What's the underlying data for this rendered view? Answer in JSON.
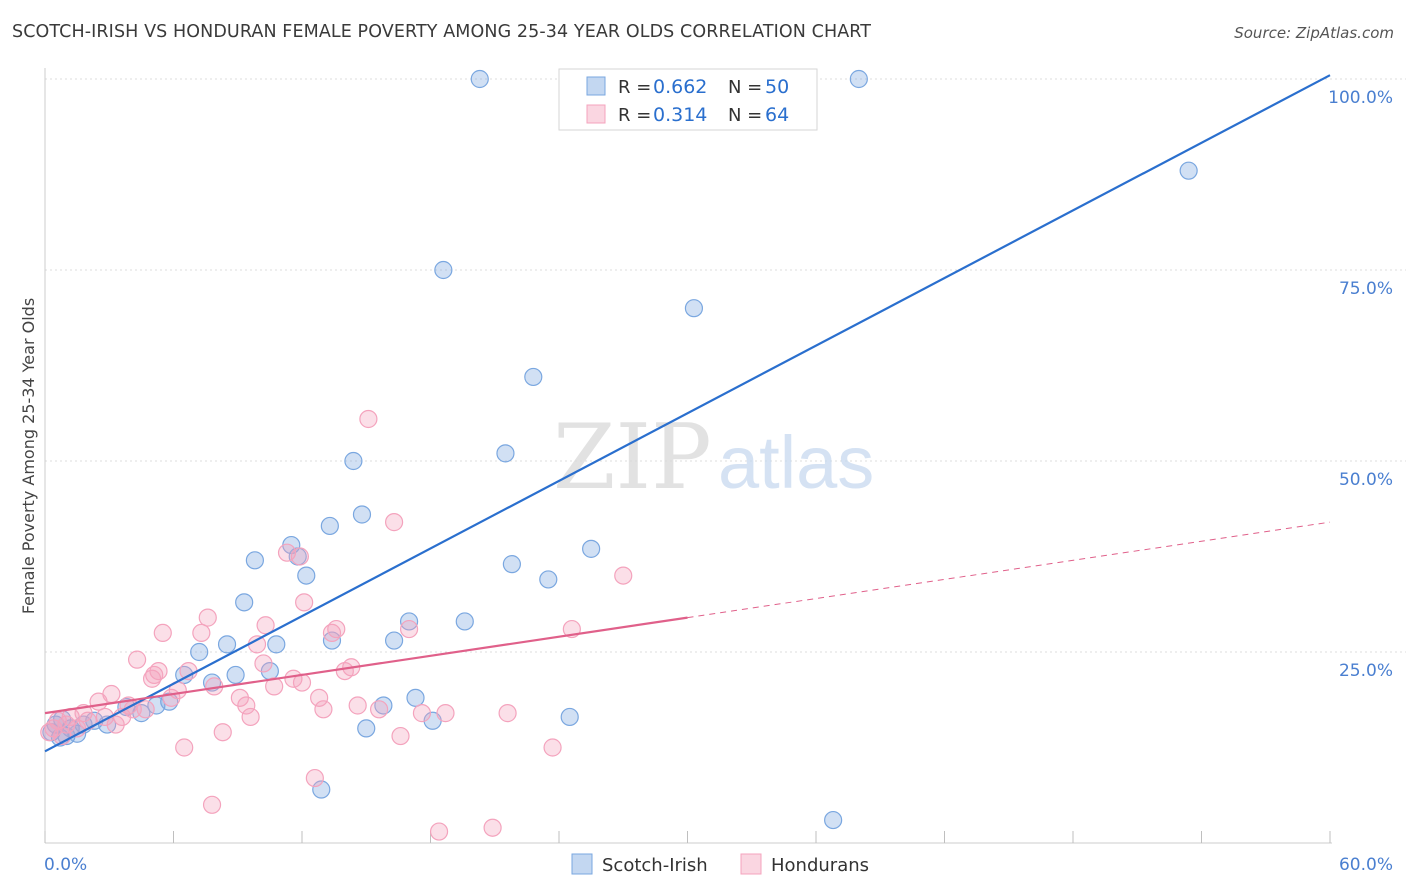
{
  "chart_data": {
    "type": "scatter",
    "title": "SCOTCH-IRISH VS HONDURAN FEMALE POVERTY AMONG 25-34 YEAR OLDS CORRELATION CHART",
    "source": "Source: ZipAtlas.com",
    "ylabel": "Female Poverty Among 25-34 Year Olds",
    "xlabel": "",
    "xlim": [
      0,
      60
    ],
    "ylim": [
      0,
      102
    ],
    "x_tick_labels": [
      {
        "value": 0,
        "label": "0.0%"
      },
      {
        "value": 60,
        "label": "60.0%"
      }
    ],
    "y_tick_labels": [
      {
        "value": 25,
        "label": "25.0%"
      },
      {
        "value": 50,
        "label": "50.0%"
      },
      {
        "value": 75,
        "label": "75.0%"
      },
      {
        "value": 100,
        "label": "100.0%"
      }
    ],
    "watermark": {
      "zip": "ZIP",
      "atlas": "atlas"
    },
    "legend_position": "top-center",
    "series": [
      {
        "name": "Scotch-Irish",
        "color": "#7aa7e0",
        "line_color": "#2a6fce",
        "r_label": "R =",
        "r_value": "0.662",
        "n_label": "N =",
        "n_value": "50",
        "trend": {
          "x0": 0,
          "y0": 12.0,
          "x1": 60,
          "y1": 100.5
        },
        "points": [
          [
            0.3,
            14.5
          ],
          [
            0.5,
            15.5
          ],
          [
            0.7,
            13.8
          ],
          [
            0.8,
            16.2
          ],
          [
            1.0,
            14.0
          ],
          [
            1.2,
            15.0
          ],
          [
            1.5,
            14.3
          ],
          [
            1.8,
            15.5
          ],
          [
            2.3,
            16.0
          ],
          [
            2.9,
            15.5
          ],
          [
            3.8,
            17.8
          ],
          [
            4.5,
            17.0
          ],
          [
            5.2,
            18.0
          ],
          [
            5.8,
            18.5
          ],
          [
            6.5,
            22.0
          ],
          [
            7.2,
            25.0
          ],
          [
            7.8,
            21.0
          ],
          [
            8.5,
            26.0
          ],
          [
            8.9,
            22.0
          ],
          [
            9.3,
            31.5
          ],
          [
            9.8,
            37.0
          ],
          [
            10.5,
            22.5
          ],
          [
            10.8,
            26.0
          ],
          [
            11.5,
            39.0
          ],
          [
            11.8,
            37.5
          ],
          [
            12.2,
            35.0
          ],
          [
            13.4,
            26.5
          ],
          [
            13.3,
            41.5
          ],
          [
            14.4,
            50.0
          ],
          [
            14.8,
            43.0
          ],
          [
            15.0,
            15.0
          ],
          [
            15.8,
            18.0
          ],
          [
            16.3,
            26.5
          ],
          [
            17.0,
            29.0
          ],
          [
            17.3,
            19.0
          ],
          [
            18.1,
            16.0
          ],
          [
            18.6,
            75.0
          ],
          [
            19.6,
            29.0
          ],
          [
            20.3,
            100.0
          ],
          [
            21.5,
            51.0
          ],
          [
            21.8,
            36.5
          ],
          [
            22.8,
            61.0
          ],
          [
            23.5,
            34.5
          ],
          [
            24.5,
            16.5
          ],
          [
            25.5,
            38.5
          ],
          [
            30.3,
            70.0
          ],
          [
            36.8,
            3.0
          ],
          [
            38.0,
            100.0
          ],
          [
            53.4,
            88.0
          ],
          [
            12.9,
            7.0
          ]
        ]
      },
      {
        "name": "Hondurans",
        "color": "#f4a3bd",
        "line_color": "#e0608a",
        "r_label": "R =",
        "r_value": "0.314",
        "n_label": "N =",
        "n_value": "64",
        "trend": {
          "x0": 0,
          "y0": 17.0,
          "x1": 30,
          "y1": 29.5
        },
        "trend_dash": {
          "x0": 30,
          "y0": 29.5,
          "x1": 60,
          "y1": 42.0
        },
        "points": [
          [
            0.2,
            14.5
          ],
          [
            0.4,
            15.0
          ],
          [
            0.6,
            16.0
          ],
          [
            0.8,
            14.0
          ],
          [
            1.0,
            15.5
          ],
          [
            1.2,
            16.5
          ],
          [
            1.5,
            15.0
          ],
          [
            1.8,
            17.0
          ],
          [
            2.0,
            16.0
          ],
          [
            2.5,
            18.5
          ],
          [
            2.8,
            16.5
          ],
          [
            3.1,
            19.5
          ],
          [
            3.3,
            15.5
          ],
          [
            3.6,
            16.5
          ],
          [
            3.9,
            18.0
          ],
          [
            4.1,
            17.5
          ],
          [
            4.3,
            24.0
          ],
          [
            4.7,
            17.5
          ],
          [
            5.1,
            22.0
          ],
          [
            5.3,
            22.5
          ],
          [
            5.5,
            27.5
          ],
          [
            5.9,
            19.0
          ],
          [
            6.2,
            20.0
          ],
          [
            6.5,
            12.5
          ],
          [
            6.7,
            22.5
          ],
          [
            7.3,
            27.5
          ],
          [
            7.6,
            29.5
          ],
          [
            7.8,
            5.0
          ],
          [
            7.9,
            20.5
          ],
          [
            8.3,
            14.5
          ],
          [
            9.1,
            19.0
          ],
          [
            9.4,
            18.0
          ],
          [
            9.6,
            16.5
          ],
          [
            9.9,
            26.0
          ],
          [
            10.2,
            23.5
          ],
          [
            10.3,
            28.5
          ],
          [
            10.7,
            20.5
          ],
          [
            11.3,
            38.0
          ],
          [
            11.6,
            21.5
          ],
          [
            11.9,
            37.5
          ],
          [
            12.1,
            31.5
          ],
          [
            12.6,
            8.5
          ],
          [
            12.8,
            19.0
          ],
          [
            13.0,
            17.5
          ],
          [
            13.4,
            27.5
          ],
          [
            13.6,
            28.0
          ],
          [
            14.0,
            22.5
          ],
          [
            14.3,
            23.0
          ],
          [
            14.6,
            18.0
          ],
          [
            15.1,
            55.5
          ],
          [
            15.6,
            17.5
          ],
          [
            16.3,
            42.0
          ],
          [
            16.6,
            14.0
          ],
          [
            17.0,
            28.0
          ],
          [
            17.6,
            17.0
          ],
          [
            18.4,
            1.5
          ],
          [
            18.7,
            17.0
          ],
          [
            20.9,
            2.0
          ],
          [
            21.6,
            17.0
          ],
          [
            23.7,
            12.5
          ],
          [
            24.6,
            28.0
          ],
          [
            27.0,
            35.0
          ],
          [
            12.0,
            21.0
          ],
          [
            5.0,
            21.5
          ]
        ]
      }
    ]
  }
}
